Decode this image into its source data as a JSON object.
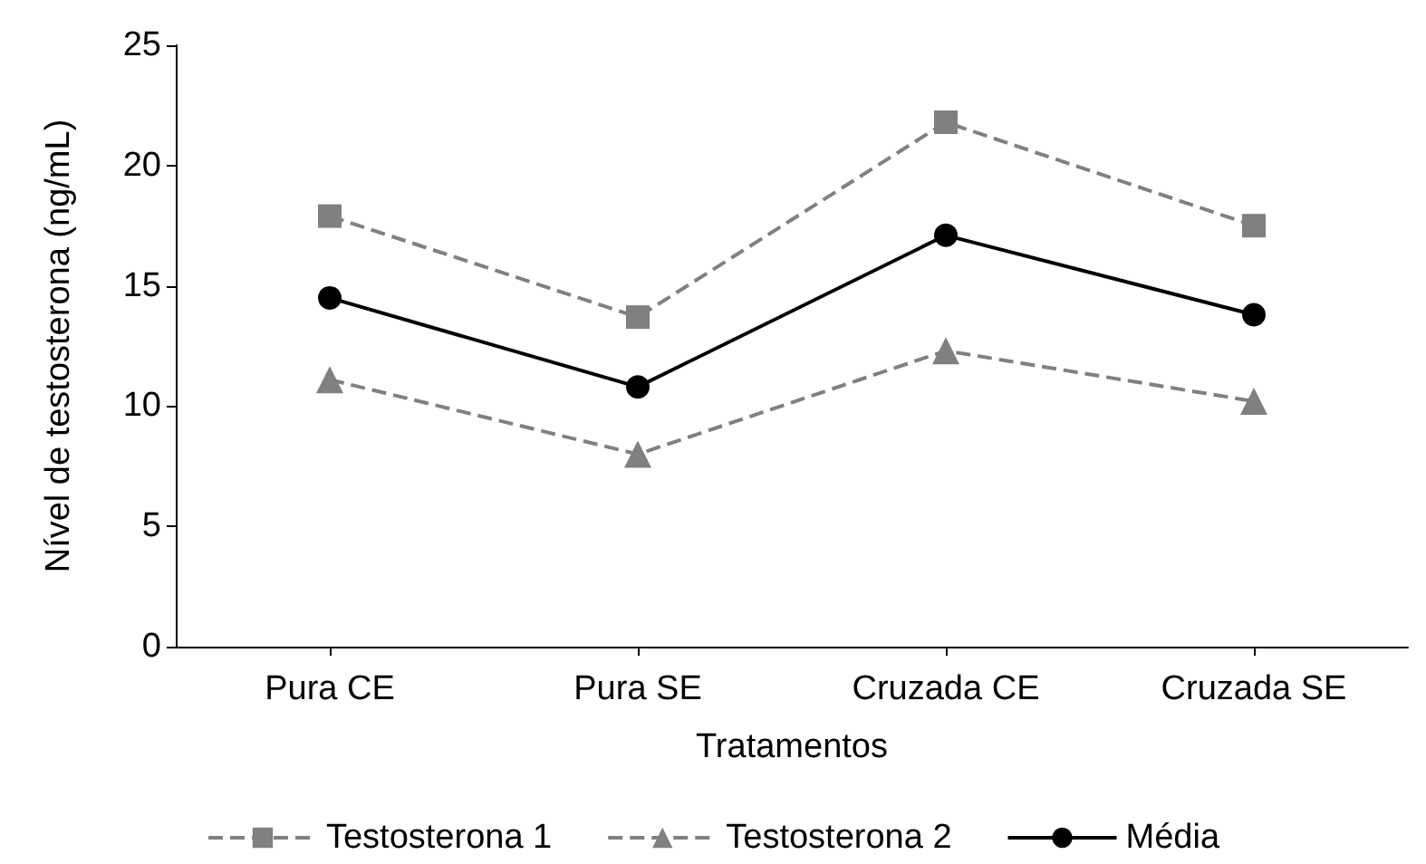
{
  "chart_data": {
    "type": "line",
    "xlabel": "Tratamentos",
    "ylabel": "Nível de testosterona (ng/mL)",
    "categories": [
      "Pura CE",
      "Pura SE",
      "Cruzada CE",
      "Cruzada SE"
    ],
    "series": [
      {
        "name": "Testosterona 1",
        "color": "#808080",
        "marker": "square",
        "line_style": "dashed",
        "values": [
          17.9,
          13.7,
          21.8,
          17.5
        ]
      },
      {
        "name": "Testosterona 2",
        "color": "#808080",
        "marker": "triangle",
        "line_style": "dashed",
        "values": [
          11.1,
          8.0,
          12.3,
          10.2
        ]
      },
      {
        "name": "Média",
        "color": "#000000",
        "marker": "circle",
        "line_style": "solid",
        "values": [
          14.5,
          10.8,
          17.1,
          13.8
        ]
      }
    ],
    "ylim": [
      0,
      25
    ],
    "yticks": [
      0,
      5,
      10,
      15,
      20,
      25
    ],
    "grid": false,
    "legend": "bottom"
  }
}
